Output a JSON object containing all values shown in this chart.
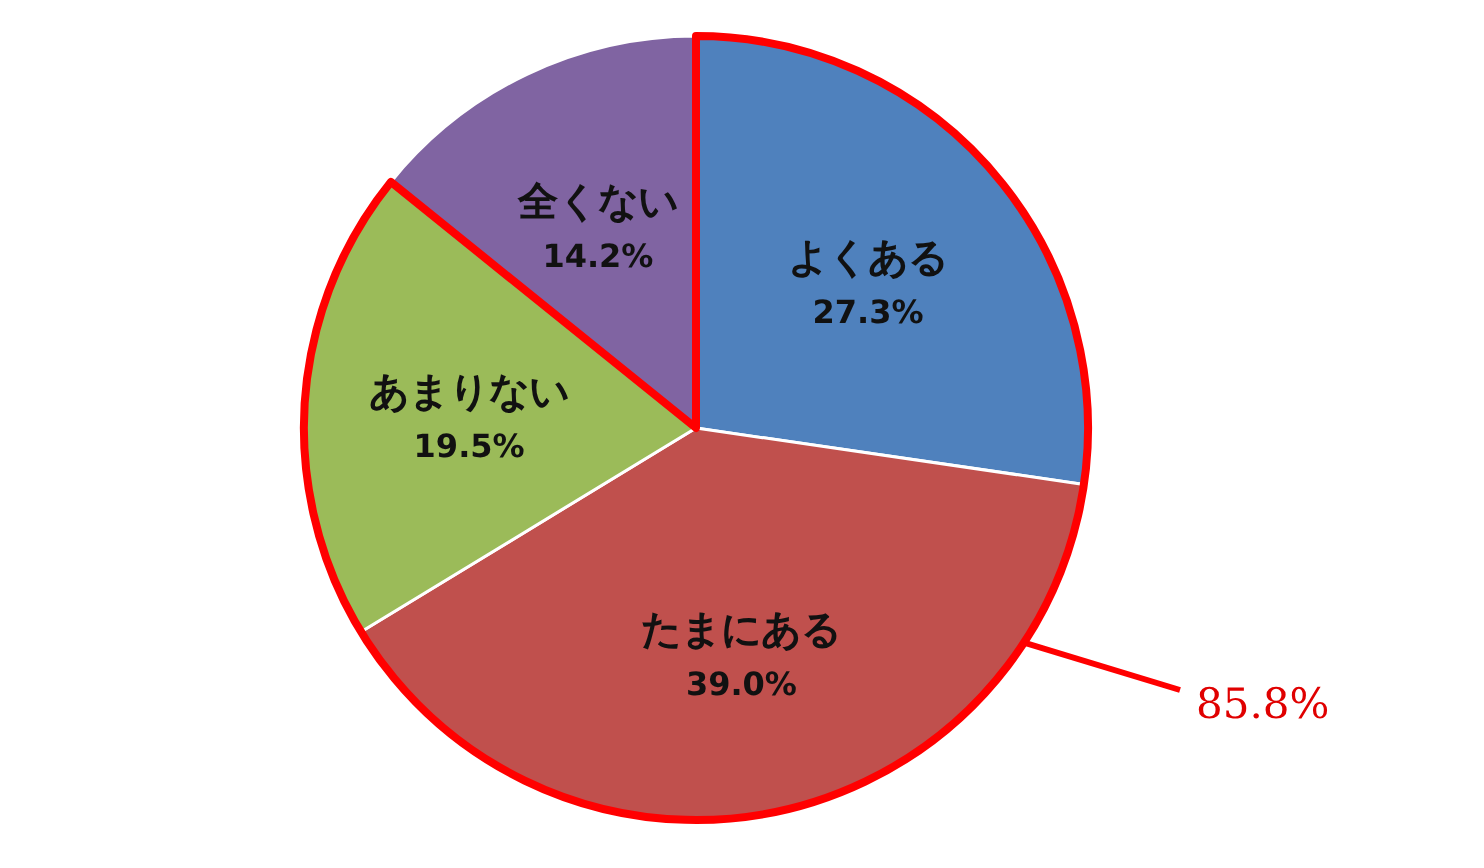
{
  "chart_data": {
    "type": "pie",
    "categories": [
      "よくある",
      "たまにある",
      "あまりない",
      "全くない"
    ],
    "values": [
      27.3,
      39.0,
      19.5,
      14.2
    ],
    "colors": [
      "#4f81bd",
      "#c0504d",
      "#9bbb59",
      "#8064a2"
    ],
    "value_labels": [
      "27.3%",
      "39.0%",
      "19.5%",
      "14.2%"
    ],
    "annotations": [
      "85.8%"
    ]
  }
}
